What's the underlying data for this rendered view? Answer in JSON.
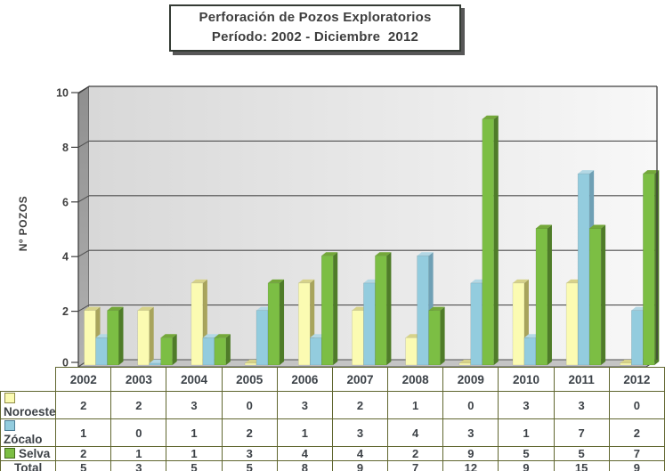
{
  "title": {
    "line1": "Perforación de Pozos Exploratorios",
    "line2": "Período: 2002 - Diciembre  2012"
  },
  "y_axis": {
    "label": "Nº POZOS",
    "ticks": [
      0,
      2,
      4,
      6,
      8,
      10
    ]
  },
  "chart_data": {
    "type": "bar",
    "title": "Perforación de Pozos Exploratorios",
    "subtitle": "Período: 2002 - Diciembre 2012",
    "xlabel": "",
    "ylabel": "Nº POZOS",
    "ylim": [
      0,
      10
    ],
    "ytick_step": 2,
    "grid": true,
    "style": "3d-clustered-column",
    "legend_position": "table-left",
    "categories": [
      "2002",
      "2003",
      "2004",
      "2005",
      "2006",
      "2007",
      "2008",
      "2009",
      "2010",
      "2011",
      "2012"
    ],
    "series": [
      {
        "name": "Noroeste",
        "color": "#fbfbb2",
        "top_color": "#d6d28a",
        "side_color": "#a8a45c",
        "swatch_border": "#8f8c48",
        "values": [
          2,
          2,
          3,
          0,
          3,
          2,
          1,
          0,
          3,
          3,
          0
        ]
      },
      {
        "name": "Zócalo",
        "color": "#93ccde",
        "top_color": "#b3d8e5",
        "side_color": "#6fa0b5",
        "swatch_border": "#4d7c94",
        "values": [
          1,
          0,
          1,
          2,
          1,
          3,
          4,
          3,
          1,
          7,
          2
        ]
      },
      {
        "name": "Selva",
        "color": "#7cbe44",
        "top_color": "#74a83a",
        "side_color": "#4f7c29",
        "swatch_border": "#44691f",
        "values": [
          2,
          1,
          1,
          3,
          4,
          4,
          2,
          9,
          5,
          5,
          7
        ]
      }
    ],
    "totals": {
      "label": "Total",
      "values": [
        5,
        3,
        5,
        5,
        8,
        9,
        7,
        12,
        9,
        15,
        9
      ]
    }
  },
  "colors": {
    "wall_left": "#d8d8d8",
    "wall_right": "#f8f8f8",
    "side_wall_top": "#8f8f8f",
    "side_wall_bottom": "#b2b2b2",
    "floor": "#c4c4c4",
    "grid_line": "#4f4f4f",
    "frame": "#3f3f3f",
    "table_border": "#60662f",
    "text": "#3e3e3e"
  }
}
